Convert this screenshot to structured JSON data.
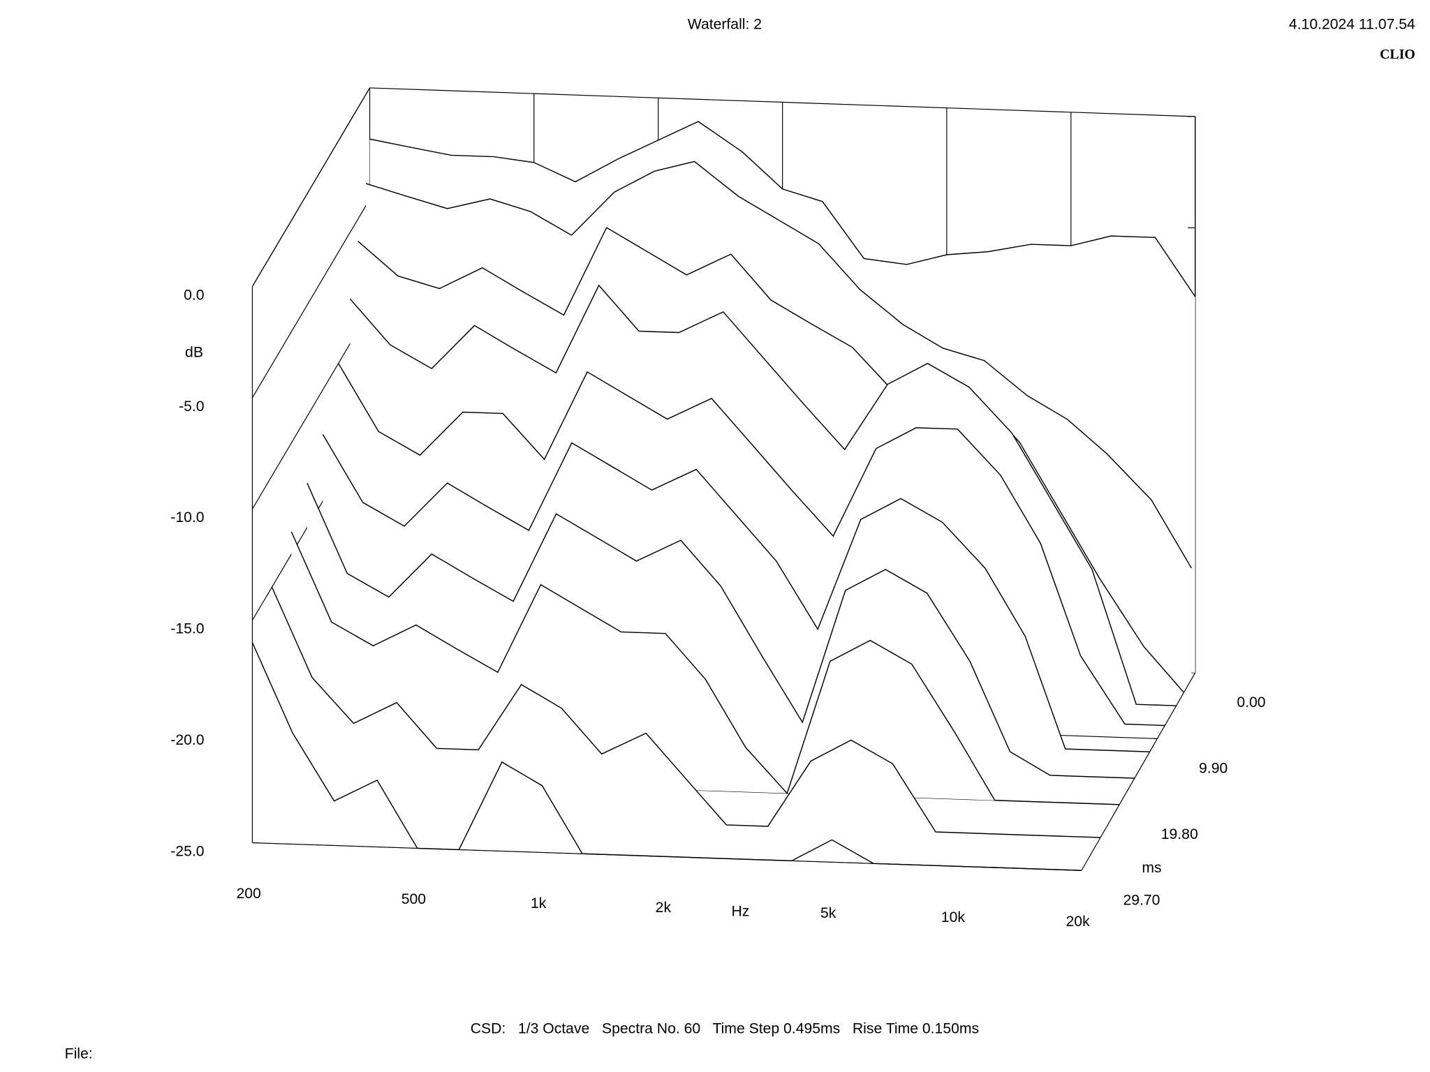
{
  "chart_data": {
    "type": "waterfall",
    "title": "Waterfall: 2",
    "timestamp": "4.10.2024 11.07.54",
    "brand": "CLIO",
    "footer": "CSD:   1/3 Octave   Spectra No. 60   Time Step 0.495ms   Rise Time 0.150ms",
    "file_label": "File:",
    "y_label": "dB",
    "x_label": "Hz",
    "z_label": "ms",
    "xscale": "log",
    "xlim": [
      200,
      20000
    ],
    "ylim": [
      -25,
      0
    ],
    "zlim": [
      0,
      29.7
    ],
    "xticks": [
      200,
      500,
      {
        "value": 1000,
        "label": "1k"
      },
      {
        "value": 2000,
        "label": "2k"
      },
      {
        "value": 5000,
        "label": "5k"
      },
      {
        "value": 10000,
        "label": "10k"
      },
      {
        "value": 20000,
        "label": "20k"
      }
    ],
    "yticks": [
      {
        "value": -25,
        "label": "-25.0"
      },
      {
        "value": -20,
        "label": "-20.0"
      },
      {
        "value": -15,
        "label": "-15.0"
      },
      {
        "value": -10,
        "label": "-10.0"
      },
      {
        "value": -5,
        "label": "-5.0"
      },
      {
        "value": 0,
        "label": "0.0"
      }
    ],
    "zticks": [
      {
        "value": 0,
        "label": "0.00"
      },
      {
        "value": 9.9,
        "label": "9.90"
      },
      {
        "value": 19.8,
        "label": "19.80"
      },
      {
        "value": 29.7,
        "label": "29.70"
      }
    ],
    "color": "#000000",
    "x": [
      200,
      250,
      315,
      400,
      500,
      630,
      800,
      1000,
      1250,
      1600,
      2000,
      2500,
      3150,
      4000,
      5000,
      6300,
      8000,
      10000,
      12500,
      16000,
      20000
    ],
    "z": [
      0,
      0.99,
      2.97,
      4.95,
      7.92,
      11.88,
      15.84,
      19.8,
      24.75,
      29.7
    ],
    "values": [
      [
        -2.3,
        -2.6,
        -2.9,
        -2.9,
        -3.1,
        -3.9,
        -2.8,
        -1.9,
        -1.0,
        -2.3,
        -3.9,
        -4.4,
        -6.9,
        -7.1,
        -6.6,
        -6.4,
        -6.0,
        -6.0,
        -5.5,
        -5.5,
        -8.1
      ],
      [
        -4,
        -4.5,
        -5,
        -4.5,
        -5,
        -6,
        -4,
        -3,
        -2.5,
        -4,
        -5,
        -6,
        -8,
        -9.5,
        -10.5,
        -11,
        -12.5,
        -13.5,
        -15,
        -17,
        -20
      ],
      [
        -6,
        -7.5,
        -8,
        -7,
        -8,
        -9,
        -5,
        -6,
        -7,
        -6,
        -8,
        -9,
        -10,
        -12,
        -11,
        -12,
        -14,
        -17,
        -20,
        -23,
        -25
      ],
      [
        -8,
        -10,
        -11,
        -9,
        -10,
        -11,
        -7,
        -9,
        -9,
        -8,
        -10,
        -12,
        -14,
        -11,
        -10,
        -11,
        -13,
        -16,
        -19,
        -25,
        -25
      ],
      [
        -10,
        -13,
        -14,
        -12,
        -12,
        -14,
        -10,
        -11,
        -12,
        -11,
        -13,
        -15,
        -17,
        -13,
        -12,
        -12,
        -14,
        -17,
        -22,
        -25,
        -25
      ],
      [
        -12,
        -15,
        -16,
        -14,
        -15,
        -16,
        -12,
        -13,
        -14,
        -13,
        -15,
        -17,
        -20,
        -15,
        -14,
        -15,
        -17,
        -20,
        -25,
        -25,
        -25
      ],
      [
        -13,
        -17,
        -18,
        -16,
        -17,
        -18,
        -14,
        -15,
        -16,
        -15,
        -17,
        -20,
        -23,
        -17,
        -16,
        -17,
        -20,
        -24,
        -25,
        -25,
        -25
      ],
      [
        -14,
        -18,
        -19,
        -18,
        -19,
        -20,
        -16,
        -17,
        -18,
        -18,
        -20,
        -23,
        -25,
        -19,
        -18,
        -19,
        -22,
        -25,
        -25,
        -25,
        -25
      ],
      [
        -15,
        -19,
        -21,
        -20,
        -22,
        -22,
        -19,
        -20,
        -22,
        -21,
        -23,
        -25,
        -25,
        -22,
        -21,
        -22,
        -25,
        -25,
        -25,
        -25,
        -25
      ],
      [
        -16,
        -20,
        -23,
        -22,
        -25,
        -25,
        -21,
        -22,
        -25,
        -25,
        -25,
        -25,
        -25,
        -25,
        -24,
        -25,
        -25,
        -25,
        -25,
        -25,
        -25
      ]
    ]
  }
}
